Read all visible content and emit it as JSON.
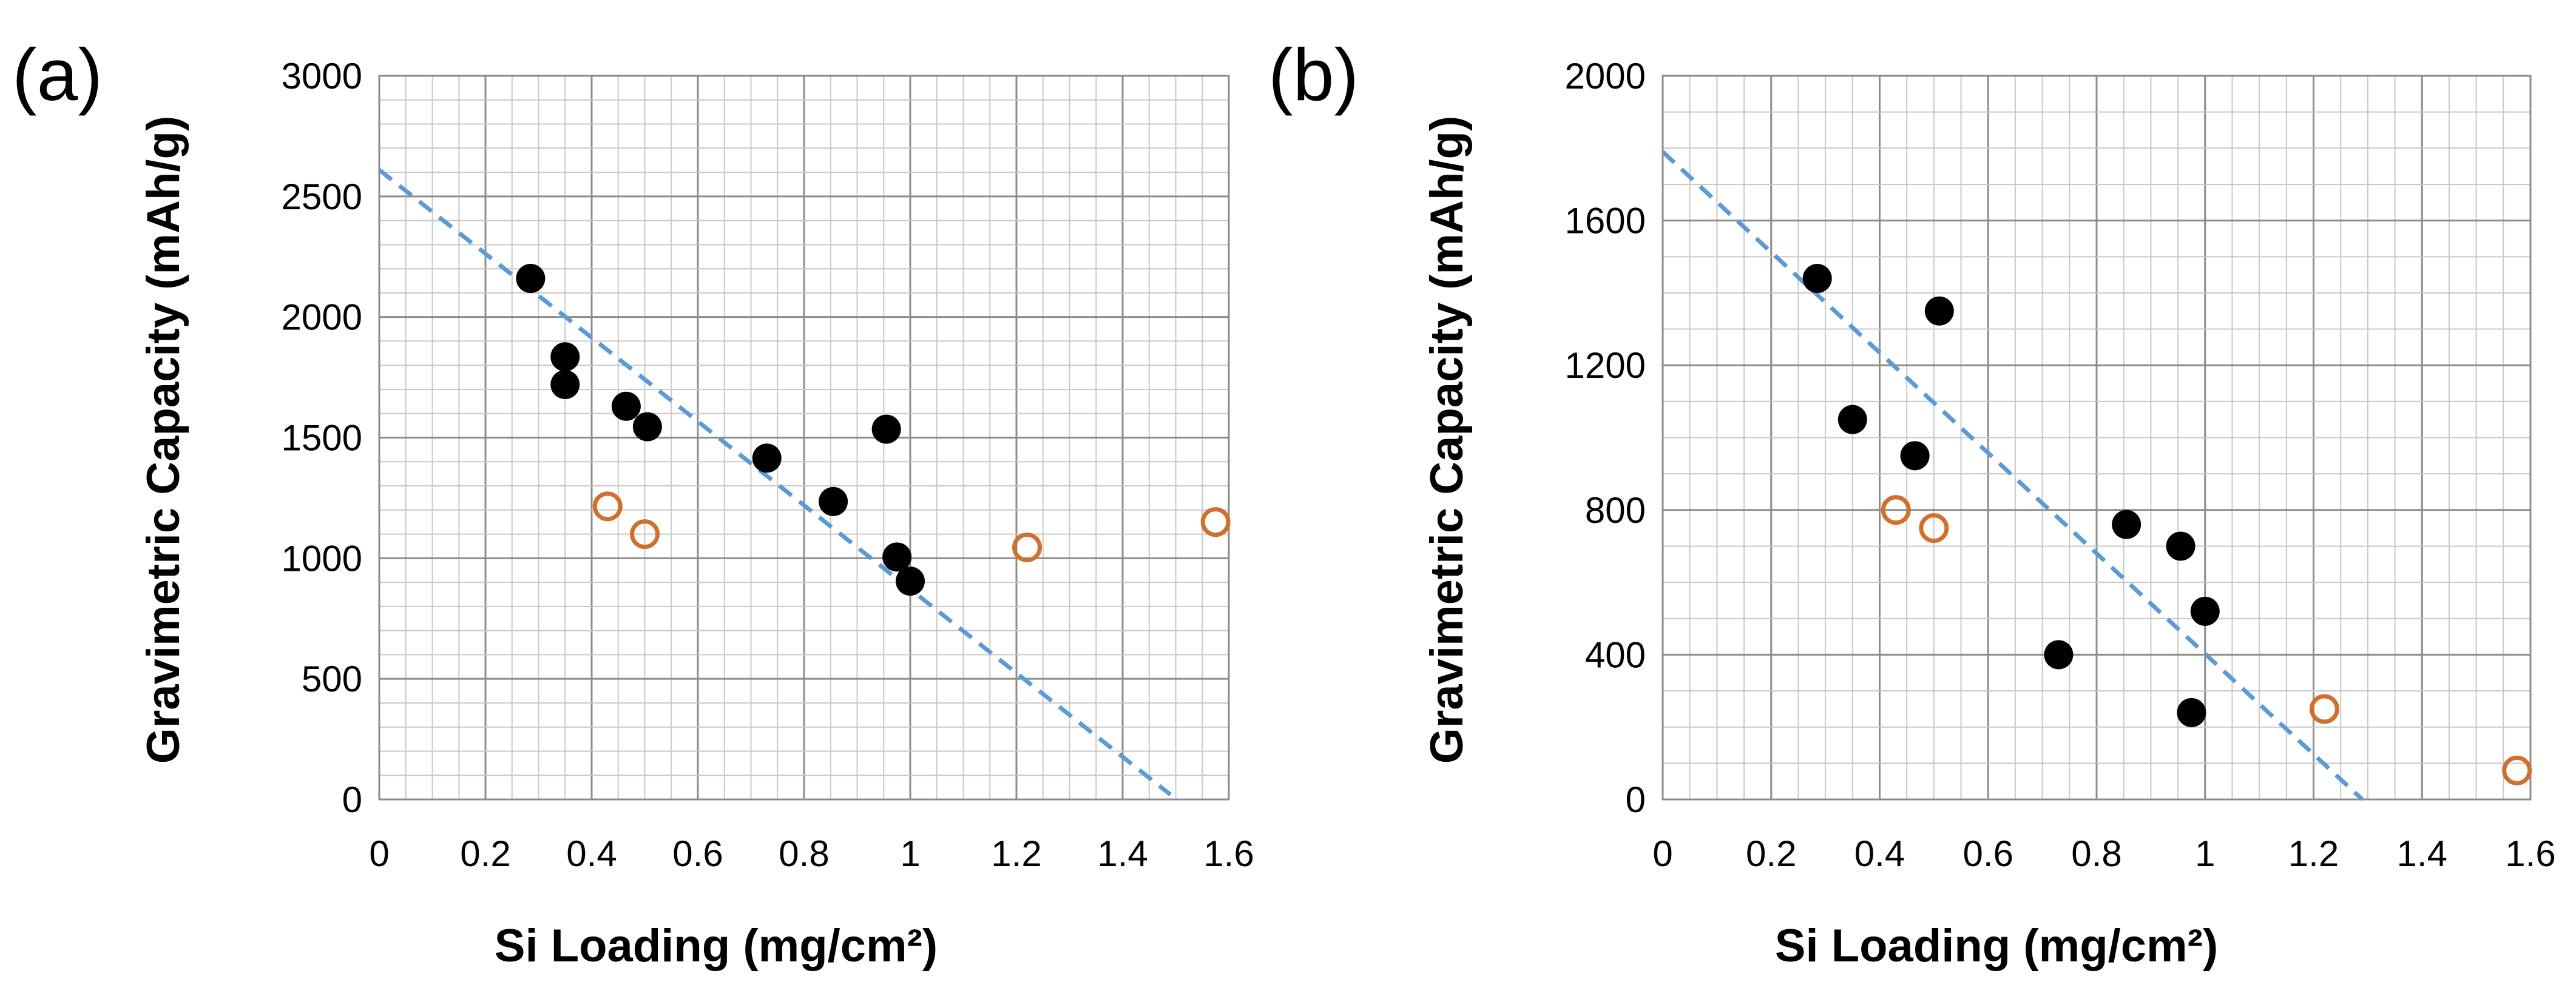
{
  "colors": {
    "filled_marker": "#000000",
    "open_marker": "#d0702f",
    "trendline": "#5b9bd5"
  },
  "chart_data": [
    {
      "type": "scatter",
      "panel_label": "(a)",
      "xlabel": "Si Loading (mg/cm²)",
      "ylabel": "Gravimetric Capacity (mAh/g)",
      "xlim": [
        0,
        1.6
      ],
      "ylim": [
        0,
        3000
      ],
      "x_major_step": 0.2,
      "y_major_step": 500,
      "x_minor_per_major": 4,
      "y_minor_per_major": 5,
      "x_ticks": [
        "0",
        "0.2",
        "0.4",
        "0.6",
        "0.8",
        "1",
        "1.2",
        "1.4",
        "1.6"
      ],
      "y_ticks": [
        "0",
        "500",
        "1000",
        "1500",
        "2000",
        "2500",
        "3000"
      ],
      "series": [
        {
          "name": "filled",
          "marker": "filled-circle",
          "points": [
            [
              0.285,
              2160
            ],
            [
              0.35,
              1835
            ],
            [
              0.35,
              1720
            ],
            [
              0.465,
              1630
            ],
            [
              0.505,
              1545
            ],
            [
              0.73,
              1415
            ],
            [
              0.855,
              1235
            ],
            [
              0.955,
              1535
            ],
            [
              0.975,
              1005
            ],
            [
              1.0,
              905
            ]
          ]
        },
        {
          "name": "open",
          "marker": "open-circle",
          "points": [
            [
              0.43,
              1215
            ],
            [
              0.5,
              1100
            ],
            [
              1.22,
              1045
            ],
            [
              1.575,
              1150
            ]
          ]
        }
      ],
      "trendline": {
        "style": "dashed",
        "from": [
          0,
          2610
        ],
        "to": [
          1.49,
          20
        ]
      }
    },
    {
      "type": "scatter",
      "panel_label": "(b)",
      "xlabel": "Si Loading (mg/cm²)",
      "ylabel": "Gravimetric Capacity (mAh/g)",
      "xlim": [
        0,
        1.6
      ],
      "ylim": [
        0,
        2000
      ],
      "x_major_step": 0.2,
      "y_major_step": 400,
      "x_minor_per_major": 4,
      "y_minor_per_major": 4,
      "x_ticks": [
        "0",
        "0.2",
        "0.4",
        "0.6",
        "0.8",
        "1",
        "1.2",
        "1.4",
        "1.6"
      ],
      "y_ticks": [
        "0",
        "400",
        "800",
        "1200",
        "1600",
        "2000"
      ],
      "series": [
        {
          "name": "filled",
          "marker": "filled-circle",
          "points": [
            [
              0.285,
              1440
            ],
            [
              0.35,
              1050
            ],
            [
              0.465,
              950
            ],
            [
              0.51,
              1350
            ],
            [
              0.73,
              400
            ],
            [
              0.855,
              760
            ],
            [
              0.955,
              700
            ],
            [
              0.975,
              240
            ],
            [
              1.0,
              520
            ]
          ]
        },
        {
          "name": "open",
          "marker": "open-circle",
          "points": [
            [
              0.43,
              800
            ],
            [
              0.5,
              750
            ],
            [
              1.22,
              250
            ],
            [
              1.575,
              80
            ]
          ]
        }
      ],
      "trendline": {
        "style": "dashed",
        "from": [
          0,
          1790
        ],
        "to": [
          1.29,
          0
        ]
      }
    }
  ]
}
